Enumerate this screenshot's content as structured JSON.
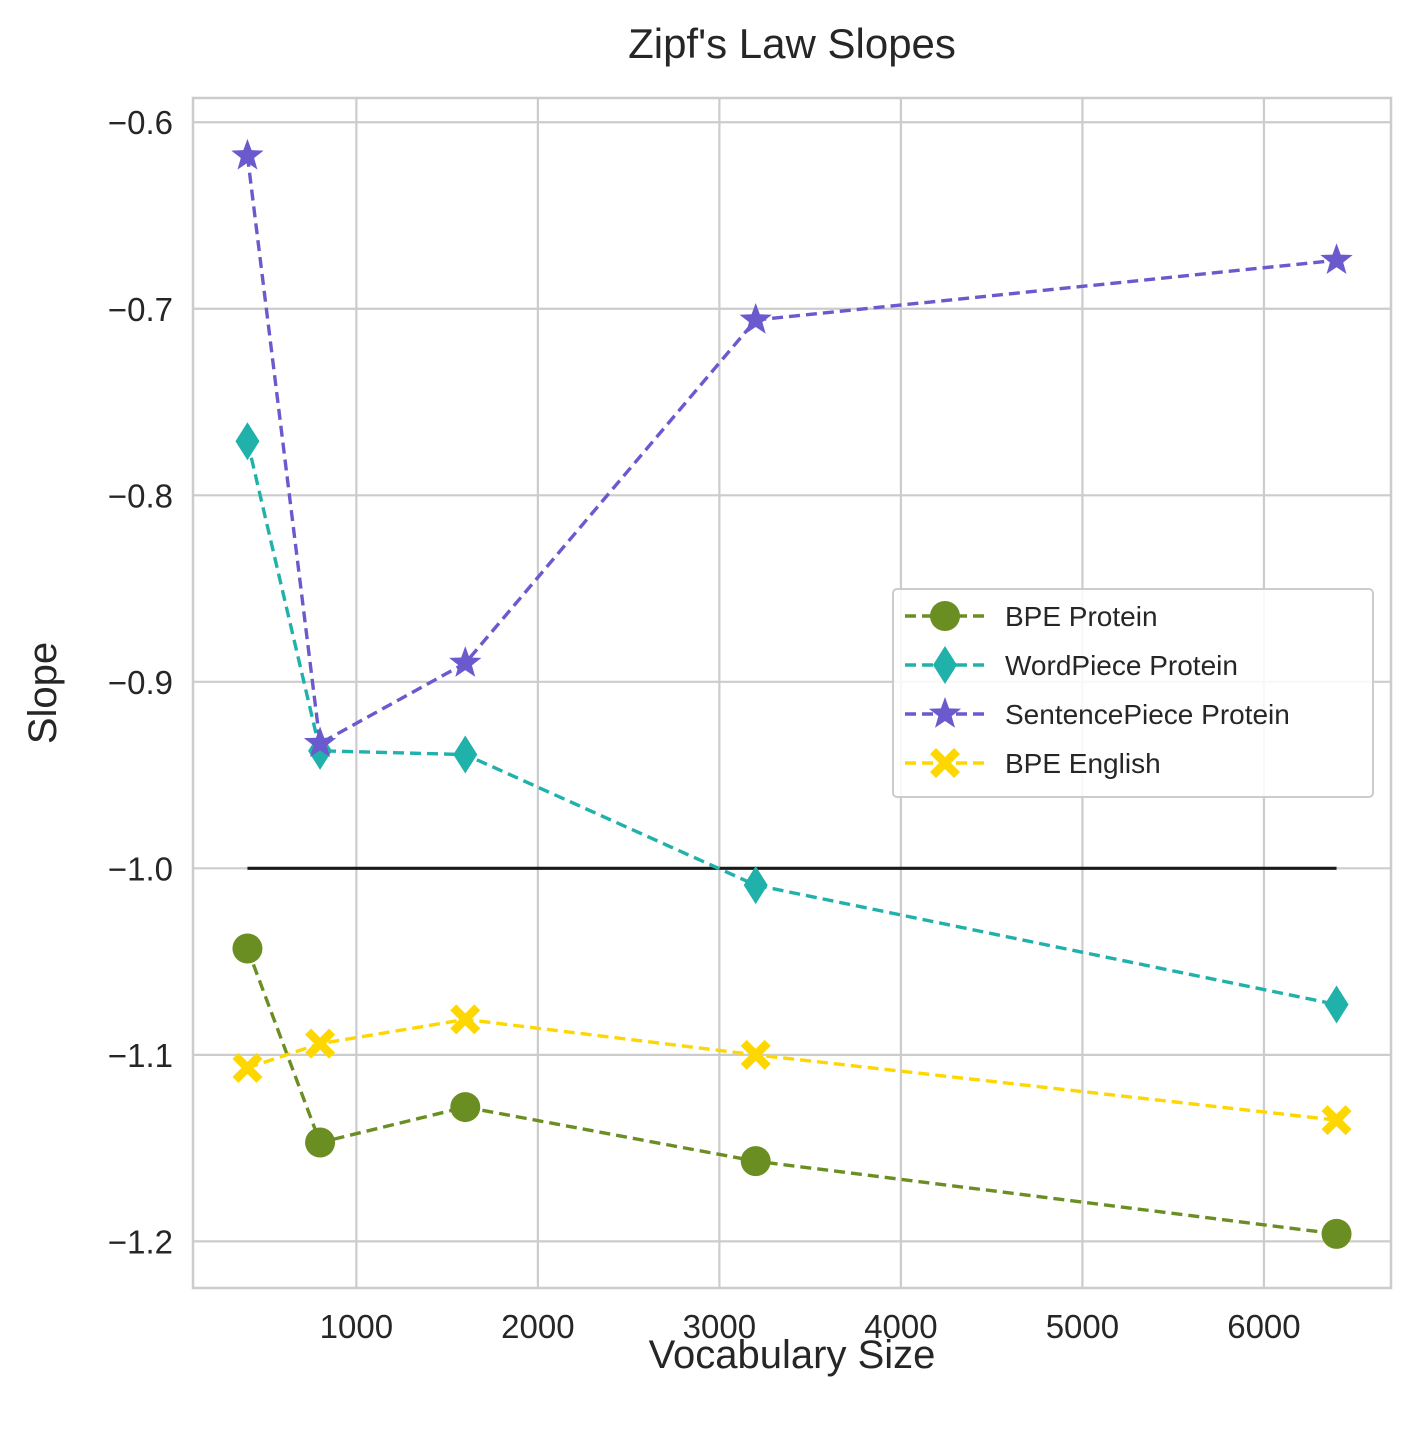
{
  "chart_data": {
    "type": "line",
    "title": "Zipf's Law Slopes",
    "xlabel": "Vocabulary Size",
    "ylabel": "Slope",
    "xlim": [
      100,
      6700
    ],
    "ylim": [
      -1.225,
      -0.587
    ],
    "xticks": [
      1000,
      2000,
      3000,
      4000,
      5000,
      6000
    ],
    "xtick_labels": [
      "1000",
      "2000",
      "3000",
      "4000",
      "5000",
      "6000"
    ],
    "yticks": [
      -0.6,
      -0.7,
      -0.8,
      -0.9,
      -1.0,
      -1.1,
      -1.2
    ],
    "ytick_labels": [
      "−0.6",
      "−0.7",
      "−0.8",
      "−0.9",
      "−1.0",
      "−1.1",
      "−1.2"
    ],
    "grid": true,
    "legend_position": "center-right",
    "x": [
      400,
      800,
      1600,
      3200,
      6400
    ],
    "series": [
      {
        "name": "BPE Protein",
        "color": "#6b8e23",
        "marker": "circle",
        "values": [
          -1.043,
          -1.147,
          -1.128,
          -1.157,
          -1.196
        ]
      },
      {
        "name": "WordPiece Protein",
        "color": "#20b2aa",
        "marker": "thin-diamond",
        "values": [
          -0.771,
          -0.937,
          -0.939,
          -1.009,
          -1.073
        ]
      },
      {
        "name": "SentencePiece Protein",
        "color": "#6a5acd",
        "marker": "star",
        "values": [
          -0.618,
          -0.933,
          -0.89,
          -0.706,
          -0.674
        ]
      },
      {
        "name": "BPE English",
        "color": "#ffd700",
        "marker": "x-filled",
        "values": [
          -1.107,
          -1.094,
          -1.081,
          -1.1,
          -1.135
        ]
      }
    ],
    "reference_line": {
      "y": -1.0,
      "x_range": [
        400,
        6400
      ],
      "color": "#1a1a1a"
    }
  }
}
